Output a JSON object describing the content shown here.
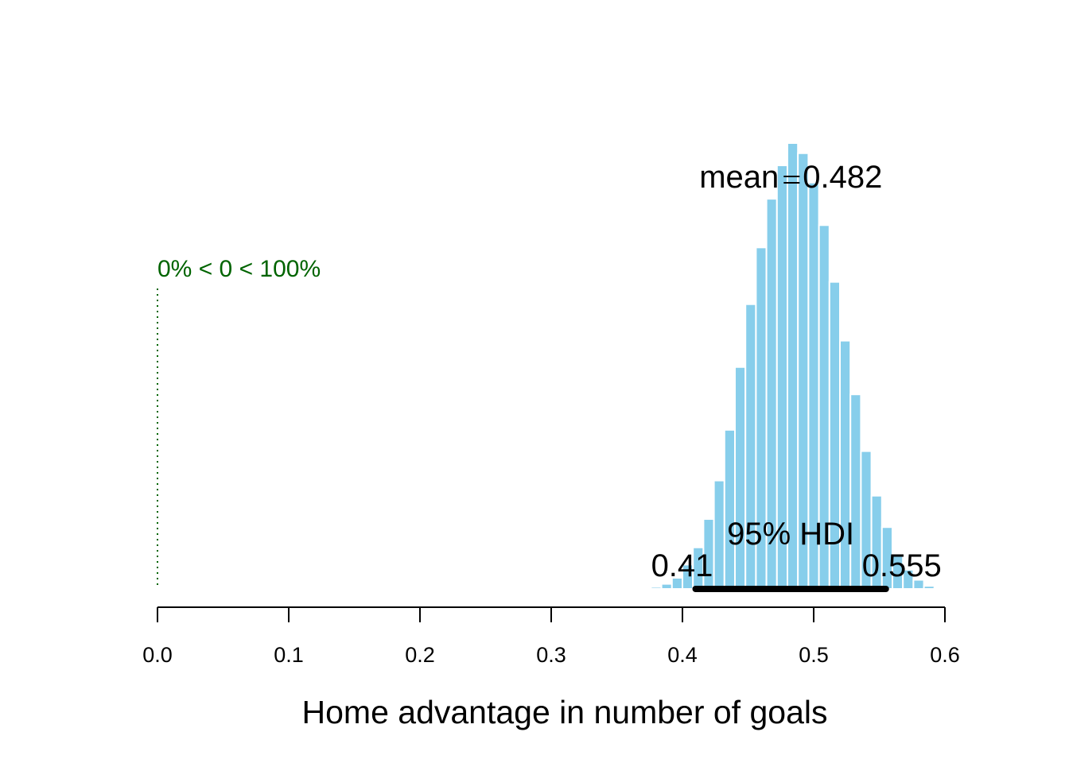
{
  "chart_data": {
    "type": "bar",
    "subtype": "histogram",
    "title": "",
    "xlabel": "Home advantage in number of goals",
    "ylabel": "",
    "xlim": [
      0,
      0.6
    ],
    "x_ticks": [
      "0.0",
      "0.1",
      "0.2",
      "0.3",
      "0.4",
      "0.5",
      "0.6"
    ],
    "bar_color": "#87CEEB",
    "bin_width": 0.008,
    "bins": [
      {
        "x0": 0.368,
        "density": 0.1
      },
      {
        "x0": 0.376,
        "density": 0.2
      },
      {
        "x0": 0.384,
        "density": 0.5
      },
      {
        "x0": 0.392,
        "density": 1.1
      },
      {
        "x0": 0.4,
        "density": 2.4
      },
      {
        "x0": 0.408,
        "density": 4.1
      },
      {
        "x0": 0.416,
        "density": 6.9
      },
      {
        "x0": 0.424,
        "density": 10.7
      },
      {
        "x0": 0.432,
        "density": 15.7
      },
      {
        "x0": 0.44,
        "density": 21.9
      },
      {
        "x0": 0.448,
        "density": 28.1
      },
      {
        "x0": 0.456,
        "density": 33.7
      },
      {
        "x0": 0.464,
        "density": 38.5
      },
      {
        "x0": 0.472,
        "density": 41.8
      },
      {
        "x0": 0.48,
        "density": 44.0
      },
      {
        "x0": 0.488,
        "density": 43.0
      },
      {
        "x0": 0.496,
        "density": 40.1
      },
      {
        "x0": 0.504,
        "density": 35.9
      },
      {
        "x0": 0.512,
        "density": 30.3
      },
      {
        "x0": 0.52,
        "density": 24.5
      },
      {
        "x0": 0.528,
        "density": 19.2
      },
      {
        "x0": 0.536,
        "density": 13.6
      },
      {
        "x0": 0.544,
        "density": 9.2
      },
      {
        "x0": 0.552,
        "density": 6.1
      },
      {
        "x0": 0.56,
        "density": 3.4
      },
      {
        "x0": 0.568,
        "density": 1.9
      },
      {
        "x0": 0.576,
        "density": 0.9
      },
      {
        "x0": 0.584,
        "density": 0.3
      },
      {
        "x0": 0.592,
        "density": 0.1
      }
    ],
    "mean": {
      "value": 0.482,
      "label": "mean",
      "value_label": "0.482"
    },
    "hdi": {
      "label": "95% HDI",
      "low": 0.41,
      "high": 0.555,
      "low_label": "0.41",
      "high_label": "0.555"
    },
    "comparison": {
      "value": 0,
      "label": "0% < 0 < 100%",
      "color": "#006400",
      "line_style": "dotted"
    }
  }
}
